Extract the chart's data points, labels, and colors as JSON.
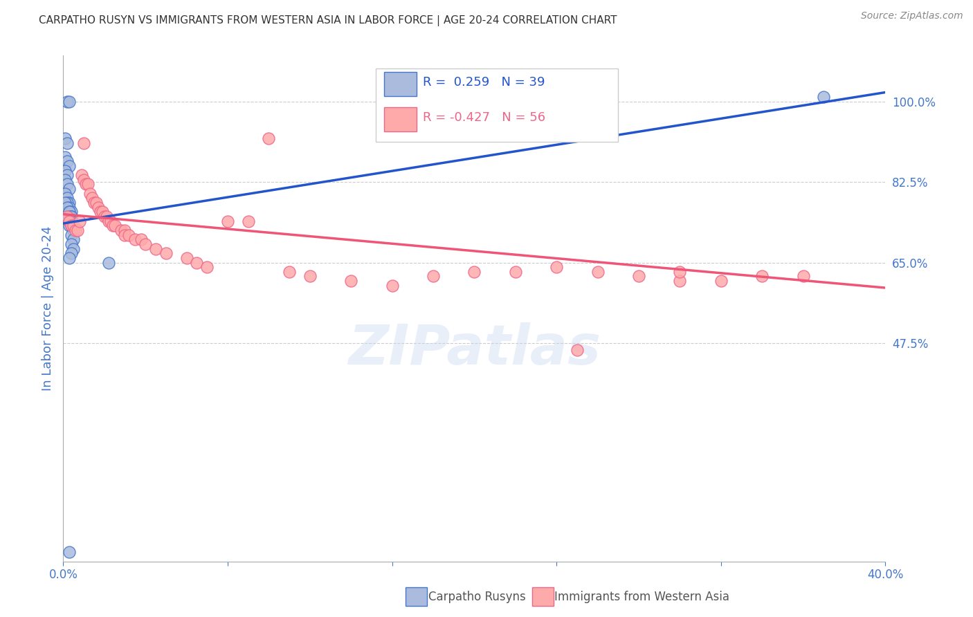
{
  "title": "CARPATHO RUSYN VS IMMIGRANTS FROM WESTERN ASIA IN LABOR FORCE | AGE 20-24 CORRELATION CHART",
  "source": "Source: ZipAtlas.com",
  "ylabel": "In Labor Force | Age 20-24",
  "xlim": [
    0.0,
    0.4
  ],
  "ylim": [
    0.0,
    1.1
  ],
  "xticks": [
    0.0,
    0.08,
    0.16,
    0.24,
    0.32,
    0.4
  ],
  "xticklabels": [
    "0.0%",
    "",
    "",
    "",
    "",
    "40.0%"
  ],
  "right_yticks": [
    1.0,
    0.825,
    0.65,
    0.475
  ],
  "right_yticklabels": [
    "100.0%",
    "82.5%",
    "65.0%",
    "47.5%"
  ],
  "grid_color": "#cccccc",
  "background_color": "#ffffff",
  "blue_fill_color": "#aabbdd",
  "blue_edge_color": "#4477cc",
  "pink_fill_color": "#ffaaaa",
  "pink_edge_color": "#ee6688",
  "blue_line_color": "#2255cc",
  "pink_line_color": "#ee5577",
  "legend_R_blue": " 0.259",
  "legend_N_blue": "39",
  "legend_R_pink": "-0.427",
  "legend_N_pink": "56",
  "label_blue": "Carpatho Rusyns",
  "label_pink": "Immigrants from Western Asia",
  "axis_label_color": "#4477cc",
  "watermark": "ZIPatlas",
  "blue_scatter_x": [
    0.002,
    0.003,
    0.001,
    0.002,
    0.001,
    0.002,
    0.003,
    0.001,
    0.002,
    0.001,
    0.002,
    0.003,
    0.001,
    0.002,
    0.003,
    0.002,
    0.001,
    0.003,
    0.002,
    0.003,
    0.004,
    0.003,
    0.004,
    0.003,
    0.004,
    0.003,
    0.004,
    0.003,
    0.004,
    0.005,
    0.004,
    0.005,
    0.004,
    0.005,
    0.004,
    0.003,
    0.022,
    0.003,
    0.37
  ],
  "blue_scatter_y": [
    1.0,
    1.0,
    0.92,
    0.91,
    0.88,
    0.87,
    0.86,
    0.85,
    0.84,
    0.83,
    0.82,
    0.81,
    0.8,
    0.79,
    0.78,
    0.78,
    0.78,
    0.77,
    0.77,
    0.76,
    0.76,
    0.76,
    0.75,
    0.75,
    0.75,
    0.74,
    0.74,
    0.73,
    0.73,
    0.72,
    0.71,
    0.7,
    0.69,
    0.68,
    0.67,
    0.66,
    0.65,
    0.02,
    1.01
  ],
  "pink_scatter_x": [
    0.002,
    0.003,
    0.004,
    0.005,
    0.006,
    0.007,
    0.008,
    0.009,
    0.01,
    0.011,
    0.012,
    0.013,
    0.014,
    0.015,
    0.016,
    0.017,
    0.018,
    0.019,
    0.02,
    0.021,
    0.022,
    0.023,
    0.024,
    0.025,
    0.028,
    0.03,
    0.03,
    0.032,
    0.035,
    0.038,
    0.04,
    0.045,
    0.05,
    0.06,
    0.065,
    0.07,
    0.08,
    0.09,
    0.1,
    0.11,
    0.12,
    0.14,
    0.16,
    0.18,
    0.2,
    0.22,
    0.24,
    0.26,
    0.28,
    0.3,
    0.32,
    0.34,
    0.36,
    0.25,
    0.3,
    0.01
  ],
  "pink_scatter_y": [
    0.75,
    0.74,
    0.73,
    0.73,
    0.72,
    0.72,
    0.74,
    0.84,
    0.83,
    0.82,
    0.82,
    0.8,
    0.79,
    0.78,
    0.78,
    0.77,
    0.76,
    0.76,
    0.75,
    0.75,
    0.74,
    0.74,
    0.73,
    0.73,
    0.72,
    0.72,
    0.71,
    0.71,
    0.7,
    0.7,
    0.69,
    0.68,
    0.67,
    0.66,
    0.65,
    0.64,
    0.74,
    0.74,
    0.92,
    0.63,
    0.62,
    0.61,
    0.6,
    0.62,
    0.63,
    0.63,
    0.64,
    0.63,
    0.62,
    0.61,
    0.61,
    0.62,
    0.62,
    0.46,
    0.63,
    0.91
  ],
  "blue_line_x": [
    0.0,
    0.4
  ],
  "blue_line_y": [
    0.735,
    1.02
  ],
  "pink_line_x": [
    0.0,
    0.4
  ],
  "pink_line_y": [
    0.755,
    0.595
  ]
}
